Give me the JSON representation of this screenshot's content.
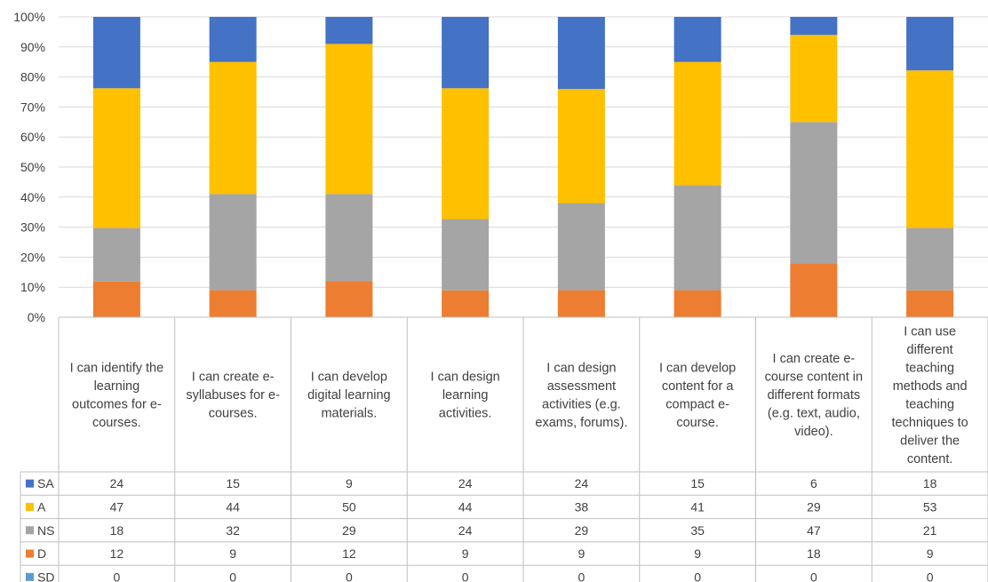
{
  "chart_data": {
    "type": "bar",
    "stacked": "percent",
    "categories": [
      "I can identify the learning outcomes for e-courses.",
      "I can create e-syllabuses for e-courses.",
      "I can develop digital learning materials.",
      "I can design learning activities.",
      "I can design assessment activities (e.g. exams, forums).",
      "I can develop content for a compact e-course.",
      "I can create e-course content in different formats (e.g. text, audio, video).",
      "I can use different teaching methods and teaching techniques to deliver the content."
    ],
    "category_lines": [
      [
        "I can identify the",
        "learning",
        "outcomes for e-",
        "courses."
      ],
      [
        "I can create e-",
        "syllabuses for e-",
        "courses."
      ],
      [
        "I can develop",
        "digital learning",
        "materials."
      ],
      [
        "I can design",
        "learning",
        "activities."
      ],
      [
        "I can design",
        "assessment",
        "activities (e.g.",
        "exams, forums)."
      ],
      [
        "I can develop",
        "content for a",
        "compact e-",
        "course."
      ],
      [
        "I can create e-",
        "course content in",
        "different formats",
        "(e.g. text, audio,",
        "video)."
      ],
      [
        "I can use",
        "different",
        "teaching",
        "methods and",
        "teaching",
        "techniques to",
        "deliver the",
        "content."
      ]
    ],
    "series": [
      {
        "name": "SD",
        "color": "#5B9BD5",
        "values": [
          0,
          0,
          0,
          0,
          0,
          0,
          0,
          0
        ]
      },
      {
        "name": "D",
        "color": "#ED7D31",
        "values": [
          12,
          9,
          12,
          9,
          9,
          9,
          18,
          9
        ]
      },
      {
        "name": "NS",
        "color": "#A5A5A5",
        "values": [
          18,
          32,
          29,
          24,
          29,
          35,
          47,
          21
        ]
      },
      {
        "name": "A",
        "color": "#FFC000",
        "values": [
          47,
          44,
          50,
          44,
          38,
          41,
          29,
          53
        ]
      },
      {
        "name": "SA",
        "color": "#4472C4",
        "values": [
          24,
          15,
          9,
          24,
          24,
          15,
          6,
          18
        ]
      }
    ],
    "table_row_order": [
      "SA",
      "A",
      "NS",
      "D",
      "SD"
    ],
    "y_ticks": [
      "0%",
      "10%",
      "20%",
      "30%",
      "40%",
      "50%",
      "60%",
      "70%",
      "80%",
      "90%",
      "100%"
    ],
    "ylim": [
      0,
      100
    ],
    "grid": true,
    "legend": "data-table"
  }
}
